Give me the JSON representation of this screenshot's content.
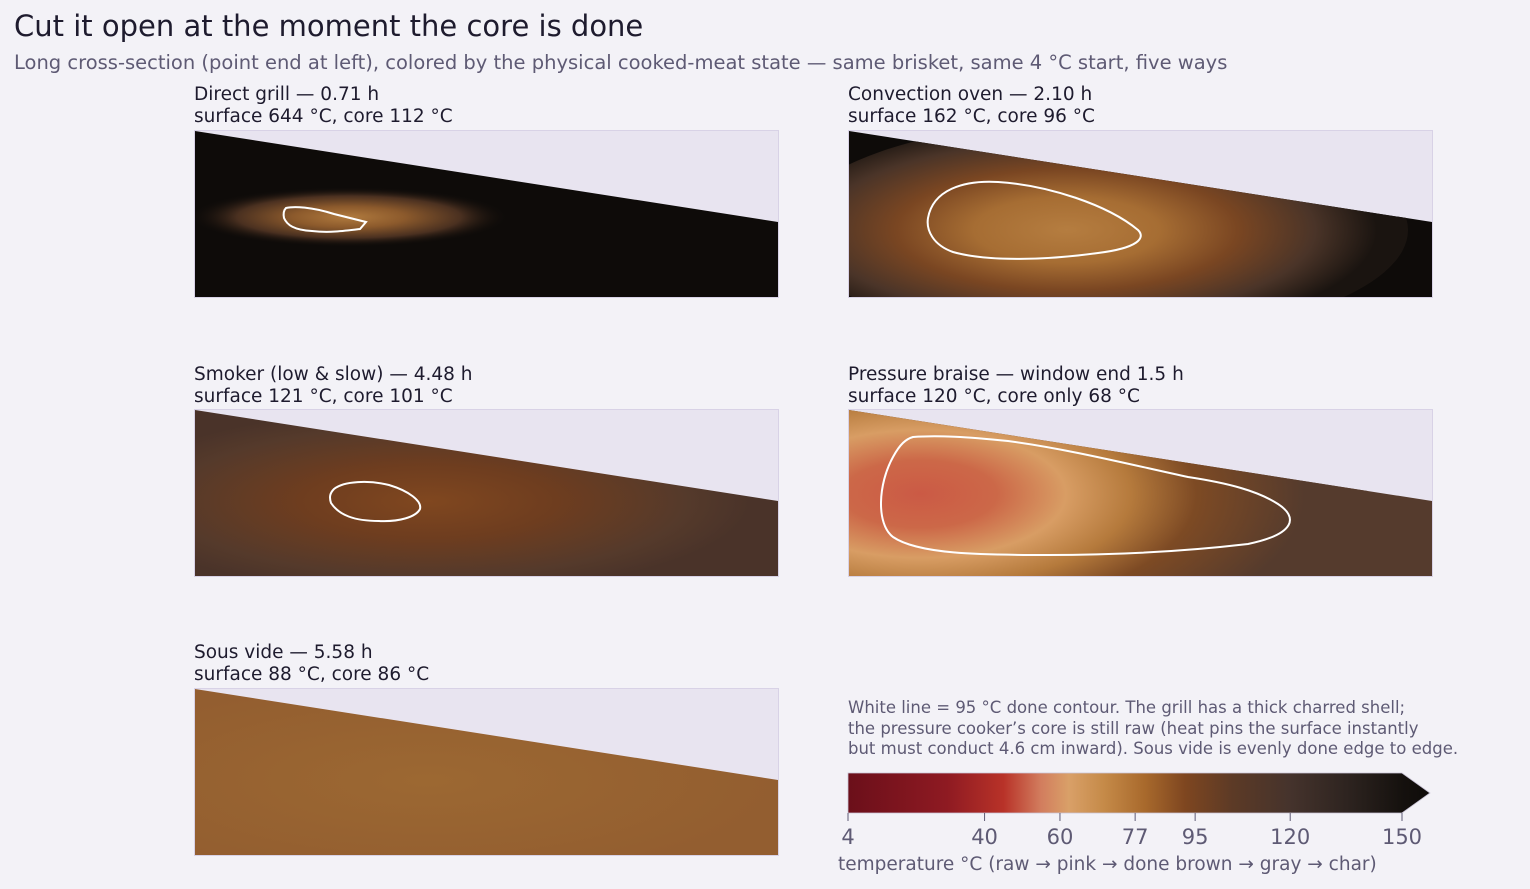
{
  "title": "Cut it open at the moment the core is done",
  "subtitle": "Long cross-section (point end at left), colored by the physical cooked-meat state — same brisket, same 4 °C start, five ways",
  "panels": [
    {
      "heading": "Direct grill — 0.71 h",
      "stats": "surface 644 °C, core 112 °C",
      "method": "direct grill",
      "time_h": 0.71,
      "surface_c": 644,
      "core_c": 112
    },
    {
      "heading": "Convection oven — 2.10 h",
      "stats": "surface 162 °C, core 96 °C",
      "method": "convection oven",
      "time_h": 2.1,
      "surface_c": 162,
      "core_c": 96
    },
    {
      "heading": "Smoker (low & slow) — 4.48 h",
      "stats": "surface 121 °C, core 101 °C",
      "method": "smoker",
      "time_h": 4.48,
      "surface_c": 121,
      "core_c": 101
    },
    {
      "heading": "Pressure braise — window end 1.5 h",
      "stats": "surface 120 °C, core only 68 °C",
      "method": "pressure braise",
      "time_h": 1.5,
      "surface_c": 120,
      "core_c": 68
    },
    {
      "heading": "Sous vide — 5.58 h",
      "stats": "surface 88 °C, core 86 °C",
      "method": "sous vide",
      "time_h": 5.58,
      "surface_c": 88,
      "core_c": 86
    }
  ],
  "note": {
    "lines": [
      "White line = 95 °C done contour. The grill has a thick charred shell;",
      "the pressure cooker’s core is still raw (heat pins the surface instantly",
      "but must conduct 4.6 cm inward). Sous vide is evenly done edge to edge."
    ]
  },
  "colorbar": {
    "label": "temperature °C  (raw → pink → done brown → gray → char)",
    "ticks": [
      4,
      40,
      60,
      77,
      95,
      120,
      150
    ],
    "tick_labels": [
      "4",
      "40",
      "60",
      "77",
      "95",
      "120",
      "150"
    ],
    "range": [
      4,
      150
    ],
    "extend": "max",
    "stops": [
      {
        "t": 4,
        "color": "#6b0f1a"
      },
      {
        "t": 30,
        "color": "#8e1a22"
      },
      {
        "t": 45,
        "color": "#b83228"
      },
      {
        "t": 55,
        "color": "#d27d5e"
      },
      {
        "t": 62,
        "color": "#d9a068"
      },
      {
        "t": 70,
        "color": "#c58a48"
      },
      {
        "t": 80,
        "color": "#a8692c"
      },
      {
        "t": 92,
        "color": "#7e4620"
      },
      {
        "t": 105,
        "color": "#5c3a26"
      },
      {
        "t": 120,
        "color": "#45332c"
      },
      {
        "t": 135,
        "color": "#2e2420"
      },
      {
        "t": 150,
        "color": "#15110e"
      }
    ]
  },
  "colors": {
    "background": "#f3f2f7",
    "empty_area": "#e8e4f0",
    "char": "#0e0b09",
    "done_contour": "#ffffff",
    "title_text": "#1e1b2e",
    "muted_text": "#5e5a74"
  },
  "chart_data": [
    {
      "type": "heatmap",
      "title": "Direct grill — 0.71 h",
      "subtitle": "surface 644 °C, core 112 °C",
      "contour_c": 95,
      "surface_c": 644,
      "core_c": 112
    },
    {
      "type": "heatmap",
      "title": "Convection oven — 2.10 h",
      "subtitle": "surface 162 °C, core 96 °C",
      "contour_c": 95,
      "surface_c": 162,
      "core_c": 96
    },
    {
      "type": "heatmap",
      "title": "Smoker (low & slow) — 4.48 h",
      "subtitle": "surface 121 °C, core 101 °C",
      "contour_c": 95,
      "surface_c": 121,
      "core_c": 101
    },
    {
      "type": "heatmap",
      "title": "Pressure braise — window end 1.5 h",
      "subtitle": "surface 120 °C, core only 68 °C",
      "contour_c": 95,
      "surface_c": 120,
      "core_c": 68
    },
    {
      "type": "heatmap",
      "title": "Sous vide — 5.58 h",
      "subtitle": "surface 88 °C, core 86 °C",
      "contour_c": 95,
      "surface_c": 88,
      "core_c": 86
    }
  ]
}
